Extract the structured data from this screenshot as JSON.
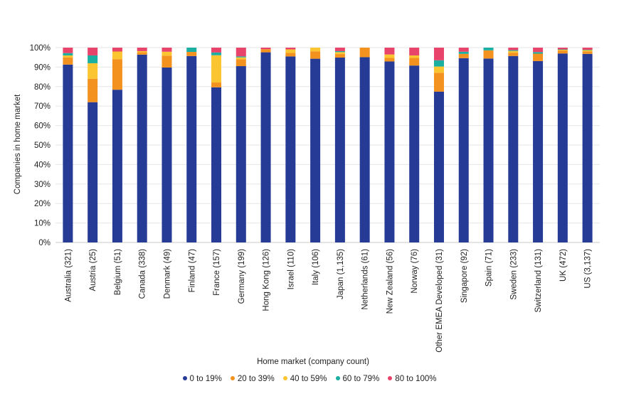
{
  "chart_data": {
    "type": "bar",
    "stacked": true,
    "xlabel": "Home market (company count)",
    "ylabel": "Companies in home market",
    "ylim": [
      0,
      100
    ],
    "y_ticks": [
      "0%",
      "10%",
      "20%",
      "30%",
      "40%",
      "50%",
      "60%",
      "70%",
      "80%",
      "90%",
      "100%"
    ],
    "grid": true,
    "legend_position": "bottom",
    "categories": [
      "Australia (321)",
      "Austria (25)",
      "Belgium (51)",
      "Canada (338)",
      "Denmark (49)",
      "Finland (47)",
      "France (157)",
      "Germany (199)",
      "Hong Kong (126)",
      "Israel (110)",
      "Italy (106)",
      "Japan (1,135)",
      "Netherlands (61)",
      "New Zealand (56)",
      "Norway (76)",
      "Other EMEA Developed (31)",
      "Singapore (92)",
      "Spain (71)",
      "Sweden (233)",
      "Switzerland (131)",
      "UK (472)",
      "US (3,137)"
    ],
    "series": [
      {
        "name": "0 to 19%",
        "color": "#263b96",
        "values": [
          91.3,
          72,
          78.4,
          96.4,
          89.8,
          95.7,
          79.6,
          90.5,
          97.6,
          95.5,
          94.3,
          94.9,
          95.1,
          92.9,
          90.8,
          77.4,
          94.6,
          94.4,
          95.7,
          93.1,
          97,
          96.8
        ]
      },
      {
        "name": "20 to 39%",
        "color": "#f3921f",
        "values": [
          3.7,
          12,
          15.7,
          1.2,
          6.1,
          2.1,
          2.5,
          3.5,
          1.6,
          1.8,
          3.8,
          1.8,
          4.9,
          1.8,
          3.9,
          9.7,
          2.2,
          4.2,
          1.7,
          3.8,
          1.5,
          1.3
        ]
      },
      {
        "name": "40 to 59%",
        "color": "#fbc531",
        "values": [
          1,
          8,
          3.9,
          0.6,
          2,
          0,
          14,
          1,
          0,
          1.8,
          1.9,
          1,
          0,
          1.8,
          1.3,
          3.2,
          0,
          0,
          0.9,
          0,
          0.4,
          0.6
        ]
      },
      {
        "name": "60 to 79%",
        "color": "#1aafa0",
        "values": [
          1.2,
          4,
          0,
          0,
          0,
          2.2,
          1.4,
          0.5,
          0,
          0,
          0,
          0.5,
          0,
          0,
          0,
          3.2,
          1.1,
          1.4,
          0.4,
          0.8,
          0.2,
          0.2
        ]
      },
      {
        "name": "80 to 100%",
        "color": "#e8436a",
        "values": [
          2.8,
          4,
          2,
          1.8,
          2.1,
          0,
          2.5,
          4.5,
          0.8,
          0.9,
          0,
          1.8,
          0,
          3.5,
          4,
          6.5,
          2.1,
          0,
          1.3,
          2.3,
          0.9,
          1.1
        ]
      }
    ]
  }
}
